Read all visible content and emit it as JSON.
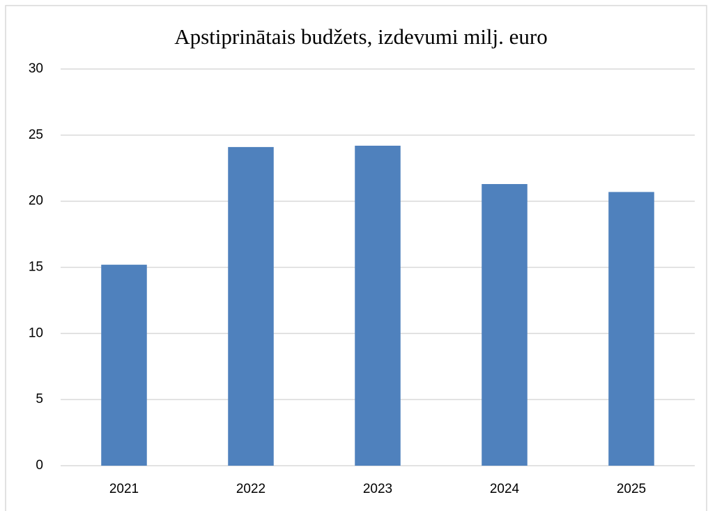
{
  "chart_data": {
    "type": "bar",
    "title": "Apstiprinātais budžets, izdevumi milj. euro",
    "categories": [
      "2021",
      "2022",
      "2023",
      "2024",
      "2025"
    ],
    "values": [
      15.2,
      24.1,
      24.2,
      21.3,
      20.7
    ],
    "color": "#4f81bd",
    "ylim": [
      0,
      30
    ],
    "yticks": [
      0,
      5,
      10,
      15,
      20,
      25,
      30
    ],
    "grid": true
  }
}
